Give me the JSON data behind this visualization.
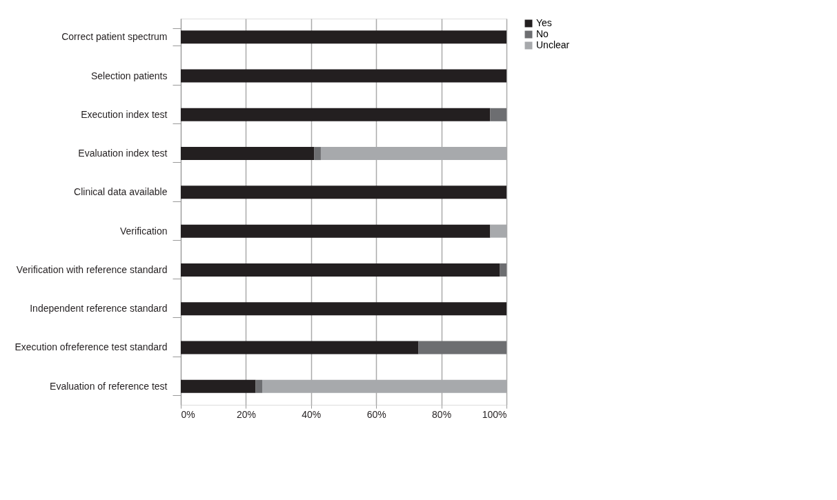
{
  "chart_data": {
    "type": "bar",
    "orientation": "horizontal",
    "stacked": true,
    "categories": [
      "Correct patient spectrum",
      "Selection patients",
      "Execution index test",
      "Evaluation index test",
      "Clinical data available",
      "Verification",
      "Verification with reference standard",
      "Independent reference standard",
      "Execution ofreference test standard",
      "Evaluation of reference test"
    ],
    "series": [
      {
        "name": "Yes",
        "color": "#231f20",
        "values": [
          100,
          100,
          95,
          41,
          100,
          95,
          98,
          100,
          73,
          23
        ]
      },
      {
        "name": "No",
        "color": "#6d6e71",
        "values": [
          0,
          0,
          5,
          2,
          0,
          0,
          2,
          0,
          27,
          2
        ]
      },
      {
        "name": "Unclear",
        "color": "#a7a9ac",
        "values": [
          0,
          0,
          0,
          57,
          0,
          5,
          0,
          0,
          0,
          75
        ]
      }
    ],
    "xlim": [
      0,
      100
    ],
    "xticks": [
      {
        "value": 0,
        "label": "0%"
      },
      {
        "value": 20,
        "label": "20%"
      },
      {
        "value": 40,
        "label": "40%"
      },
      {
        "value": 60,
        "label": "60%"
      },
      {
        "value": 80,
        "label": "80%"
      },
      {
        "value": 100,
        "label": "100%"
      }
    ],
    "grid": "x",
    "legend": "right"
  }
}
